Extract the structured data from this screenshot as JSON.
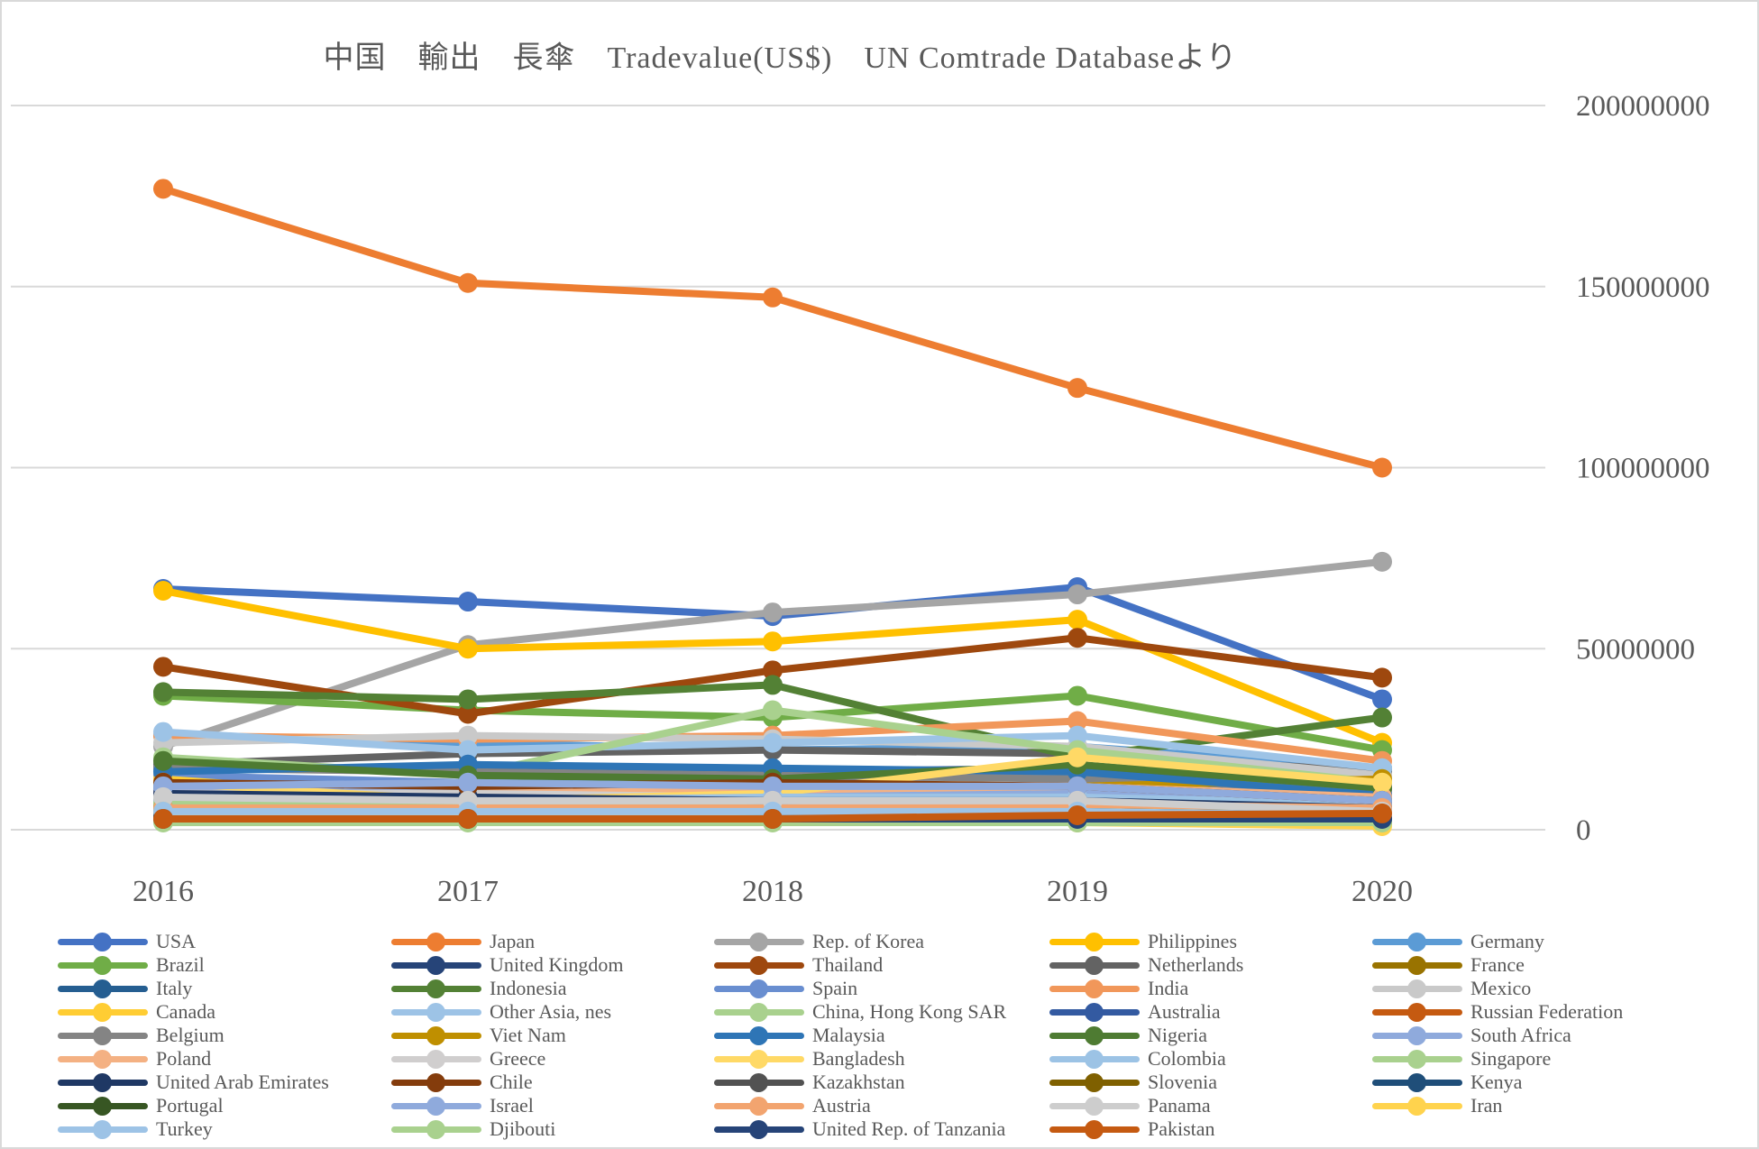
{
  "title": "中国　輸出　長傘　Tradevalue(US$)　UN Comtrade Databaseより",
  "colors": {
    "text": "#595959",
    "gridline": "#d9d9d9",
    "background": "#ffffff",
    "border": "#d9d9d9"
  },
  "chart_data": {
    "type": "line",
    "title": "中国　輸出　長傘　Tradevalue(US$)　UN Comtrade Databaseより",
    "xlabel": "",
    "ylabel": "",
    "x": [
      "2016",
      "2017",
      "2018",
      "2019",
      "2020"
    ],
    "ylim": [
      0,
      200000000
    ],
    "y_ticks": [
      "200000000",
      "150000000",
      "100000000",
      "50000000",
      "0"
    ],
    "y_tick_values": [
      200000000,
      150000000,
      100000000,
      50000000,
      0
    ],
    "grid": true,
    "y_axis_side": "right",
    "legend_position": "bottom",
    "legend_columns": 5,
    "marker": "circle",
    "series": [
      {
        "name": "USA",
        "color": "#4472C4",
        "values": [
          66500000,
          63000000,
          59000000,
          67000000,
          36000000
        ]
      },
      {
        "name": "Japan",
        "color": "#ED7D31",
        "values": [
          177000000,
          151000000,
          147000000,
          122000000,
          100000000
        ]
      },
      {
        "name": "Rep. of Korea",
        "color": "#A5A5A5",
        "values": [
          23000000,
          51000000,
          60000000,
          65000000,
          74000000
        ]
      },
      {
        "name": "Philippines",
        "color": "#FFC000",
        "values": [
          66000000,
          50000000,
          52000000,
          58000000,
          24000000
        ]
      },
      {
        "name": "Germany",
        "color": "#5B9BD5",
        "values": [
          26000000,
          24000000,
          22000000,
          23000000,
          17000000
        ]
      },
      {
        "name": "Brazil",
        "color": "#70AD47",
        "values": [
          37000000,
          33000000,
          31000000,
          37000000,
          22000000
        ]
      },
      {
        "name": "United Kingdom",
        "color": "#264478",
        "values": [
          11000000,
          10000000,
          10000000,
          10000000,
          7000000
        ]
      },
      {
        "name": "Thailand",
        "color": "#9E480E",
        "values": [
          45000000,
          32000000,
          44000000,
          53000000,
          42000000
        ]
      },
      {
        "name": "Netherlands",
        "color": "#636363",
        "values": [
          18000000,
          21000000,
          22000000,
          21000000,
          16000000
        ]
      },
      {
        "name": "France",
        "color": "#997300",
        "values": [
          8000000,
          7000000,
          7000000,
          7000000,
          5000000
        ]
      },
      {
        "name": "Italy",
        "color": "#255E91",
        "values": [
          12000000,
          10000000,
          9000000,
          9000000,
          6000000
        ]
      },
      {
        "name": "Indonesia",
        "color": "#538135",
        "values": [
          38000000,
          36000000,
          40000000,
          20000000,
          31000000
        ]
      },
      {
        "name": "Spain",
        "color": "#698ED0",
        "values": [
          15000000,
          13000000,
          14000000,
          15000000,
          10000000
        ]
      },
      {
        "name": "India",
        "color": "#F1975A",
        "values": [
          26000000,
          25000000,
          26000000,
          30000000,
          19000000
        ]
      },
      {
        "name": "Mexico",
        "color": "#C9C9C9",
        "values": [
          24000000,
          26000000,
          25000000,
          23000000,
          15000000
        ]
      },
      {
        "name": "Canada",
        "color": "#FFCD33",
        "values": [
          14000000,
          8000000,
          9000000,
          10000000,
          9000000
        ]
      },
      {
        "name": "Other Asia, nes",
        "color": "#9DC3E6",
        "values": [
          27000000,
          22000000,
          24000000,
          26000000,
          17000000
        ]
      },
      {
        "name": "China, Hong Kong SAR",
        "color": "#A9D18E",
        "values": [
          20000000,
          15000000,
          33000000,
          22000000,
          13000000
        ]
      },
      {
        "name": "Australia",
        "color": "#335AA1",
        "values": [
          17000000,
          17000000,
          16000000,
          17000000,
          12000000
        ]
      },
      {
        "name": "Russian Federation",
        "color": "#C55A11",
        "values": [
          5000000,
          4000000,
          5000000,
          6000000,
          4500000
        ]
      },
      {
        "name": "Belgium",
        "color": "#848484",
        "values": [
          17000000,
          16000000,
          15000000,
          14000000,
          11000000
        ]
      },
      {
        "name": "Viet Nam",
        "color": "#BF8F00",
        "values": [
          7000000,
          9000000,
          10000000,
          12000000,
          14000000
        ]
      },
      {
        "name": "Malaysia",
        "color": "#2E75B6",
        "values": [
          16000000,
          18000000,
          17000000,
          16000000,
          9500000
        ]
      },
      {
        "name": "Nigeria",
        "color": "#4E7B32",
        "values": [
          19000000,
          15000000,
          14000000,
          18000000,
          11500000
        ]
      },
      {
        "name": "South Africa",
        "color": "#8FAADC",
        "values": [
          11000000,
          11000000,
          10000000,
          10000000,
          8000000
        ]
      },
      {
        "name": "Poland",
        "color": "#F4B183",
        "values": [
          10000000,
          10000000,
          11000000,
          12000000,
          9000000
        ]
      },
      {
        "name": "Greece",
        "color": "#D0CECE",
        "values": [
          10000000,
          10000000,
          9000000,
          8000000,
          6000000
        ]
      },
      {
        "name": "Bangladesh",
        "color": "#FFD966",
        "values": [
          13000000,
          8000000,
          10000000,
          20000000,
          13000000
        ]
      },
      {
        "name": "Colombia",
        "color": "#9CC3E5",
        "values": [
          8000000,
          8000000,
          9000000,
          9000000,
          7000000
        ]
      },
      {
        "name": "Singapore",
        "color": "#A9D18E",
        "values": [
          7000000,
          7000000,
          7000000,
          7000000,
          5000000
        ]
      },
      {
        "name": "United Arab Emirates",
        "color": "#1F3864",
        "values": [
          10000000,
          9000000,
          8000000,
          8000000,
          6000000
        ]
      },
      {
        "name": "Chile",
        "color": "#843C0C",
        "values": [
          13000000,
          12000000,
          13000000,
          12000000,
          8000000
        ]
      },
      {
        "name": "Kazakhstan",
        "color": "#525252",
        "values": [
          4000000,
          4000000,
          5000000,
          5000000,
          4000000
        ]
      },
      {
        "name": "Slovenia",
        "color": "#7F6000",
        "values": [
          3000000,
          3000000,
          3000000,
          3000000,
          2000000
        ]
      },
      {
        "name": "Kenya",
        "color": "#1F4E79",
        "values": [
          4000000,
          4000000,
          4000000,
          4000000,
          3000000
        ]
      },
      {
        "name": "Portugal",
        "color": "#375623",
        "values": [
          6000000,
          5000000,
          5000000,
          5000000,
          4000000
        ]
      },
      {
        "name": "Israel",
        "color": "#8FAADC",
        "values": [
          12000000,
          13000000,
          12000000,
          12000000,
          8000000
        ]
      },
      {
        "name": "Austria",
        "color": "#F2A46F",
        "values": [
          6000000,
          6000000,
          6000000,
          7000000,
          6000000
        ]
      },
      {
        "name": "Panama",
        "color": "#CDCDCD",
        "values": [
          9000000,
          8000000,
          8000000,
          8000000,
          5000000
        ]
      },
      {
        "name": "Iran",
        "color": "#FFD34D",
        "values": [
          5000000,
          4000000,
          3000000,
          2000000,
          1000000
        ]
      },
      {
        "name": "Turkey",
        "color": "#9DC3E6",
        "values": [
          5000000,
          5000000,
          5000000,
          5000000,
          4000000
        ]
      },
      {
        "name": "Djibouti",
        "color": "#A9D18E",
        "values": [
          2000000,
          2000000,
          2000000,
          2000000,
          2000000
        ]
      },
      {
        "name": "United Rep. of Tanzania",
        "color": "#264478",
        "values": [
          3000000,
          3000000,
          3000000,
          3000000,
          3000000
        ]
      },
      {
        "name": "Pakistan",
        "color": "#C55A11",
        "values": [
          3000000,
          3000000,
          3000000,
          4000000,
          4500000
        ]
      }
    ]
  }
}
